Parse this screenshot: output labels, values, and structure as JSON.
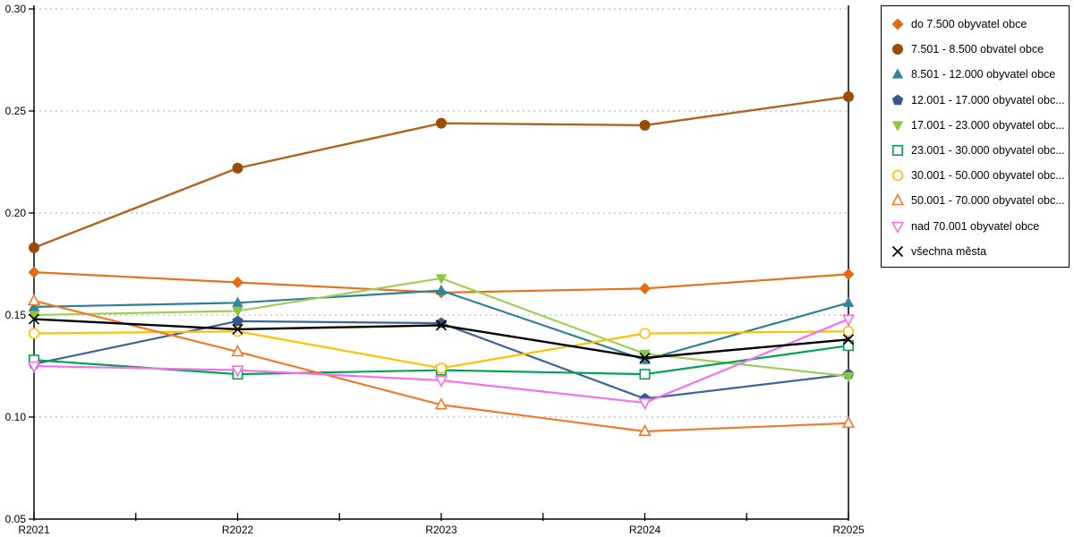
{
  "chart_data": {
    "type": "line",
    "title": "",
    "xlabel": "",
    "ylabel": "",
    "x_categories": [
      "R2021",
      "R2022",
      "R2023",
      "R2024",
      "R2025"
    ],
    "y_tick_labels": [
      "0.05",
      "0.10",
      "0.15",
      "0.20",
      "0.25",
      "0.30"
    ],
    "ylim": [
      0.05,
      0.3
    ],
    "grid": "horizontal-dotted",
    "gridline_color": "#aaaaaa",
    "axis_color": "#000000",
    "legend_position": "right",
    "series": [
      {
        "label": "do 7.500 obyvatel obce",
        "color": "#e8711a",
        "marker_color": "#e06a12",
        "marker": "diamond-filled",
        "values": [
          0.171,
          0.166,
          0.161,
          0.163,
          0.17
        ]
      },
      {
        "label": "7.501 - 8.500 obvatel obce",
        "color": "#b2641e",
        "marker_color": "#9c4a08",
        "marker": "circle-filled",
        "values": [
          0.183,
          0.222,
          0.244,
          0.243,
          0.257
        ]
      },
      {
        "label": "8.501 - 12.000 obyvatel obce",
        "color": "#2e8098",
        "marker_color": "#31849b",
        "marker": "triangle-up-filled",
        "values": [
          0.154,
          0.156,
          0.162,
          0.128,
          0.156
        ]
      },
      {
        "label": "12.001 - 17.000 obyvatel obc...",
        "color": "#3d6399",
        "marker_color": "#33598c",
        "marker": "pentagon-filled",
        "values": [
          0.126,
          0.147,
          0.146,
          0.109,
          0.121
        ]
      },
      {
        "label": "17.001 - 23.000 obyvatel obc...",
        "color": "#9fce57",
        "marker_color": "#8cc540",
        "marker": "triangle-down-filled",
        "values": [
          0.15,
          0.152,
          0.168,
          0.131,
          0.12
        ]
      },
      {
        "label": "23.001 - 30.000 obyvatel obc...",
        "color": "#00a550",
        "marker_color": "#00a550",
        "marker": "square-hollow",
        "values": [
          0.128,
          0.121,
          0.123,
          0.121,
          0.135
        ]
      },
      {
        "label": "30.001 - 50.000 obyvatel obc...",
        "color": "#ffc000",
        "marker_color": "#ffc000",
        "marker": "circle-hollow",
        "values": [
          0.141,
          0.142,
          0.124,
          0.141,
          0.142
        ]
      },
      {
        "label": "50.001 - 70.000 obyvatel obc...",
        "color": "#f0792a",
        "marker_color": "#f0792a",
        "marker": "triangle-up-hollow",
        "values": [
          0.157,
          0.132,
          0.106,
          0.093,
          0.097
        ]
      },
      {
        "label": "nad 70.001 obyvatel obce",
        "color": "#f272ee",
        "marker_color": "#f272ee",
        "marker": "triangle-down-hollow",
        "values": [
          0.125,
          0.123,
          0.118,
          0.107,
          0.148
        ]
      },
      {
        "label": "všechna města",
        "color": "#000000",
        "marker_color": "#000000",
        "marker": "x-cross",
        "values": [
          0.148,
          0.143,
          0.145,
          0.129,
          0.138
        ]
      }
    ]
  }
}
